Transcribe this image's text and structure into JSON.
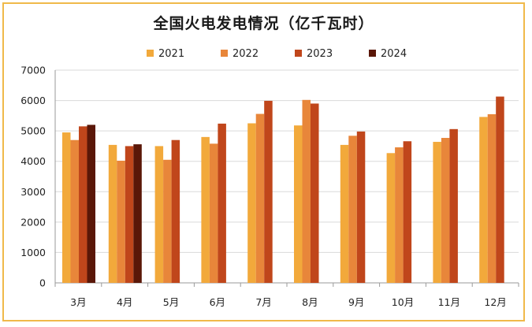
{
  "chart_data": {
    "type": "bar",
    "title": "全国火电发电情况（亿千瓦时）",
    "categories": [
      "3月",
      "4月",
      "5月",
      "6月",
      "7月",
      "8月",
      "9月",
      "10月",
      "11月",
      "12月"
    ],
    "series": [
      {
        "name": "2021",
        "color": "#f2a93b",
        "values": [
          4950,
          4540,
          4500,
          4800,
          5250,
          5180,
          4540,
          4270,
          4640,
          5460
        ]
      },
      {
        "name": "2022",
        "color": "#e8863a",
        "values": [
          4700,
          4020,
          4050,
          4580,
          5560,
          6020,
          4840,
          4460,
          4770,
          5550
        ]
      },
      {
        "name": "2023",
        "color": "#c0461b",
        "values": [
          5150,
          4500,
          4700,
          5240,
          5990,
          5900,
          4980,
          4660,
          5060,
          6130
        ]
      },
      {
        "name": "2024",
        "color": "#5a1708",
        "values": [
          5200,
          4560,
          null,
          null,
          null,
          null,
          null,
          null,
          null,
          null
        ]
      }
    ],
    "ylim": [
      0,
      7000
    ],
    "yticks": [
      0,
      1000,
      2000,
      3000,
      4000,
      5000,
      6000,
      7000
    ],
    "grid": true,
    "legend": "top"
  }
}
